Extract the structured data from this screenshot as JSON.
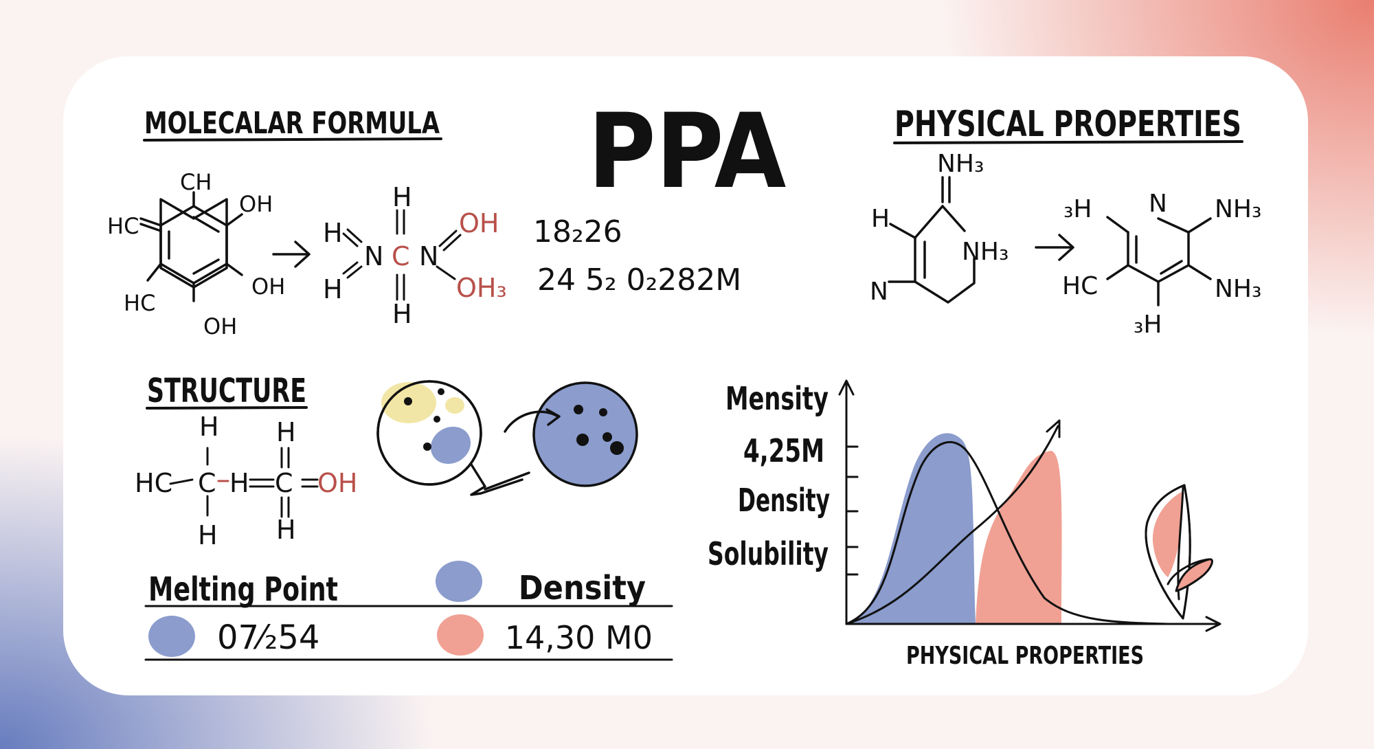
{
  "title": "PPA",
  "sections": {
    "molecular_formula": "MOLECALAR FORMULA",
    "physical_properties": "PHYSICAL PROPERTIES",
    "structure": "STRUCTURE"
  },
  "formula_values": {
    "line1": "18₂26",
    "line2": "24 5₂ 0₂282M"
  },
  "mol1_labels": {
    "ch": "CH",
    "hc_top": "HC",
    "hc_bottom": "HC",
    "oh1": "OH",
    "oh2": "OH",
    "oh3": "OH"
  },
  "mol2_labels": {
    "h_top": "H",
    "h_bottom": "H",
    "h_left_top": "H",
    "h_left_bottom": "H",
    "n_left": "N",
    "c": "C",
    "n_right": "N",
    "oh": "OH",
    "oh3": "OH₃"
  },
  "mol3_labels": {
    "nh3": "NH₃",
    "h": "H",
    "n": "N",
    "nh3_right": "NH₃"
  },
  "mol4_labels": {
    "h3_top": "₃H",
    "n": "N",
    "nh3_top": "NH₃",
    "nh3_bottom": "NH₃",
    "hc": "HC",
    "h3_bottom": "₃H"
  },
  "structure_labels": {
    "hc": "HC",
    "c1": "C",
    "h_mid": "H",
    "c2": "C",
    "oh": "OH",
    "h1_top": "H",
    "h1_bottom": "H",
    "h2_top": "H",
    "h2_bottom": "H"
  },
  "table": {
    "col1_header": "Melting Point",
    "col2_header": "Density",
    "col1_value": "07⁄₂54",
    "col2_value": "14,30 M0"
  },
  "graph": {
    "y_labels": [
      "Mensity",
      "4,25M",
      "Density",
      "Solubility"
    ],
    "x_label": "PHYSICAL PROPERTIES"
  },
  "colors": {
    "blue": "#8b9ccd",
    "salmon": "#f0a194",
    "yellow": "#f2e6a6",
    "red_atom": "#b8504a",
    "ink": "#111111"
  },
  "icons": [
    "arrow-right-icon",
    "magnifier-icon",
    "leaf-icon"
  ]
}
